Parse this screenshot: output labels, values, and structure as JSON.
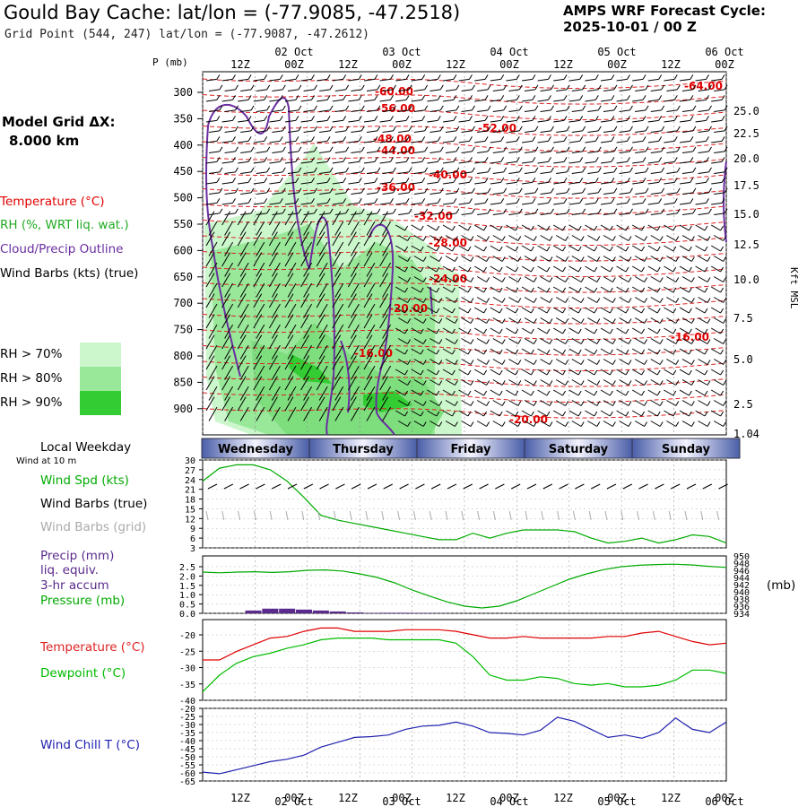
{
  "header": {
    "title": "Gould Bay Cache:  lat/lon = (-77.9085, -47.2518)",
    "subtitle": "Grid Point (544, 247) lat/lon = (-77.9087, -47.2612)",
    "cycle_line1": "AMPS WRF Forecast Cycle:",
    "cycle_line2": "2025-10-01 / 00  Z",
    "grid_label": "Model Grid ΔX:",
    "grid_value": "8.000 km"
  },
  "legend": {
    "temperature": "Temperature (°C)",
    "rh": "RH (%, WRT liq. wat.)",
    "cloud": "Cloud/Precip Outline",
    "barbs": "Wind Barbs (kts) (true)",
    "rh70": "RH > 70%",
    "rh80": "RH > 80%",
    "rh90": "RH > 90%"
  },
  "colors": {
    "temperature": "#e00000",
    "temp_contour": "#dd2222",
    "rh70": "#ccf7cc",
    "rh80": "#99e899",
    "rh90": "#33cc33",
    "cloud": "#6a2ea0",
    "wind": "#00aa00",
    "wind_grid": "#aaaaaa",
    "precip": "#5a2a8c",
    "pressure": "#00aa00",
    "dewpoint": "#00bb00",
    "windchill": "#2020b0"
  },
  "time_axis": {
    "hour_labels": [
      "12Z",
      "00Z",
      "12Z",
      "00Z",
      "12Z",
      "00Z",
      "12Z",
      "00Z",
      "12Z",
      "00Z"
    ],
    "date_labels": [
      "02 Oct",
      "03 Oct",
      "04 Oct",
      "05 Oct",
      "06 Oct"
    ],
    "weekday_title": "Local Weekday",
    "weekdays": [
      "Wednesday",
      "Thursday",
      "Friday",
      "Saturday",
      "Sunday"
    ]
  },
  "panels": {
    "wind": {
      "subtitle": "Wind at 10 m",
      "spd": "Wind Spd (kts)",
      "barbs_true": "Wind Barbs (true)",
      "barbs_grid": "Wind Barbs (grid)"
    },
    "precip": {
      "l1": "Precip (mm)",
      "l2": "liq. equiv.",
      "l3": "3-hr accum",
      "pressure": "Pressure (mb)",
      "unit": "(mb)"
    },
    "temp": {
      "t": "Temperature (°C)",
      "d": "Dewpoint (°C)"
    },
    "wc": {
      "l": "Wind Chill T (°C)"
    }
  },
  "chart_data": [
    {
      "type": "heatmap",
      "ylabel": "P (mb)",
      "yticks": [
        "300",
        "350",
        "400",
        "450",
        "500",
        "550",
        "600",
        "650",
        "700",
        "750",
        "800",
        "850",
        "900"
      ],
      "right_ylabel": "Kft MSL",
      "right_yticks": [
        "25.0",
        "22.5",
        "20.0",
        "17.5",
        "15.0",
        "12.5",
        "10.0",
        "7.5",
        "5.0",
        "2.5",
        "1.04"
      ],
      "temperature_labels": [
        "-60.00",
        "-56.00",
        "-52.00",
        "-48.00",
        "-44.00",
        "-40.00",
        "-36.00",
        "-32.00",
        "-28.00",
        "-24.00",
        "-20.00",
        "-16.00",
        "-20.00",
        "-16.00",
        "-64.00"
      ]
    },
    {
      "type": "line",
      "yticks": [
        "30",
        "27",
        "24",
        "21",
        "18",
        "15",
        "12",
        "9",
        "6",
        "3"
      ],
      "ylim": [
        3,
        30
      ],
      "series": [
        {
          "values": [
            23.5,
            27.5,
            28.5,
            28.5,
            27,
            23.5,
            18.5,
            13,
            11.5,
            10.5,
            9.5,
            8.5,
            7.5,
            6.5,
            5.5,
            5.5,
            7.5,
            6,
            7.5,
            8.5,
            8.5,
            8.5,
            8,
            6,
            4.5,
            5,
            6,
            4.5,
            5.5,
            7,
            6.5,
            4.5
          ]
        }
      ]
    },
    {
      "type": "line",
      "left_yticks": [
        "2.5",
        "2.0",
        "1.5",
        "1.0",
        "0.5",
        "0.0"
      ],
      "right_yticks": [
        "950",
        "948",
        "946",
        "944",
        "942",
        "940",
        "938",
        "936",
        "934"
      ],
      "series": [
        {
          "values": [
            945.5,
            945.3,
            945.5,
            945.6,
            945.4,
            945.6,
            946.0,
            946.1,
            945.8,
            945.0,
            944.0,
            942.5,
            940.5,
            938.8,
            937.2,
            936.0,
            935.5,
            936.0,
            937.5,
            939.5,
            941.5,
            943.5,
            945.0,
            946.2,
            947.0,
            947.4,
            947.6,
            947.7,
            947.5,
            947.1,
            946.8
          ]
        },
        {
          "type": "bar",
          "values": [
            0,
            0,
            0,
            0.15,
            0.25,
            0.25,
            0.2,
            0.15,
            0.1,
            0.05,
            0.02,
            0.03,
            0.03,
            0.02,
            0.01,
            0,
            0,
            0,
            0,
            0,
            0,
            0,
            0,
            0,
            0,
            0,
            0,
            0,
            0,
            0,
            0,
            0
          ]
        }
      ]
    },
    {
      "type": "line",
      "yticks": [
        "-20",
        "-25",
        "-30",
        "-35",
        "-40"
      ],
      "ylim": [
        -40,
        -16
      ],
      "series": [
        {
          "values": [
            -28,
            -28,
            -25.5,
            -23.5,
            -21.5,
            -21,
            -19.5,
            -18.5,
            -18.5,
            -19.5,
            -19.5,
            -19.5,
            -19,
            -19,
            -19,
            -19.5,
            -20.5,
            -21.5,
            -21.5,
            -21,
            -21.5,
            -21.5,
            -21.5,
            -21.5,
            -21,
            -21,
            -20,
            -19.5,
            -21,
            -22.5,
            -23.5,
            -23
          ]
        },
        {
          "values": [
            -37.5,
            -32.5,
            -29,
            -27,
            -26,
            -24.5,
            -23.5,
            -22,
            -21.5,
            -21.5,
            -21.5,
            -22,
            -22,
            -22,
            -22,
            -23,
            -27,
            -32.5,
            -34,
            -34,
            -33,
            -33.5,
            -35,
            -35.5,
            -35,
            -36,
            -36,
            -35.5,
            -34,
            -31,
            -31,
            -32
          ]
        }
      ]
    },
    {
      "type": "line",
      "yticks": [
        "-20",
        "-25",
        "-30",
        "-35",
        "-40",
        "-45",
        "-50",
        "-55",
        "-60",
        "-65"
      ],
      "ylim": [
        -65,
        -20
      ],
      "series": [
        {
          "values": [
            -59.5,
            -60.5,
            -58,
            -55.5,
            -53,
            -51.5,
            -49,
            -44,
            -41,
            -38,
            -37.5,
            -36.5,
            -33,
            -31,
            -30.5,
            -28.5,
            -31,
            -35,
            -35.5,
            -36.5,
            -33.5,
            -25.5,
            -28,
            -33,
            -38,
            -36.5,
            -38.5,
            -35,
            -26,
            -33,
            -35,
            -28.5
          ]
        }
      ]
    }
  ]
}
